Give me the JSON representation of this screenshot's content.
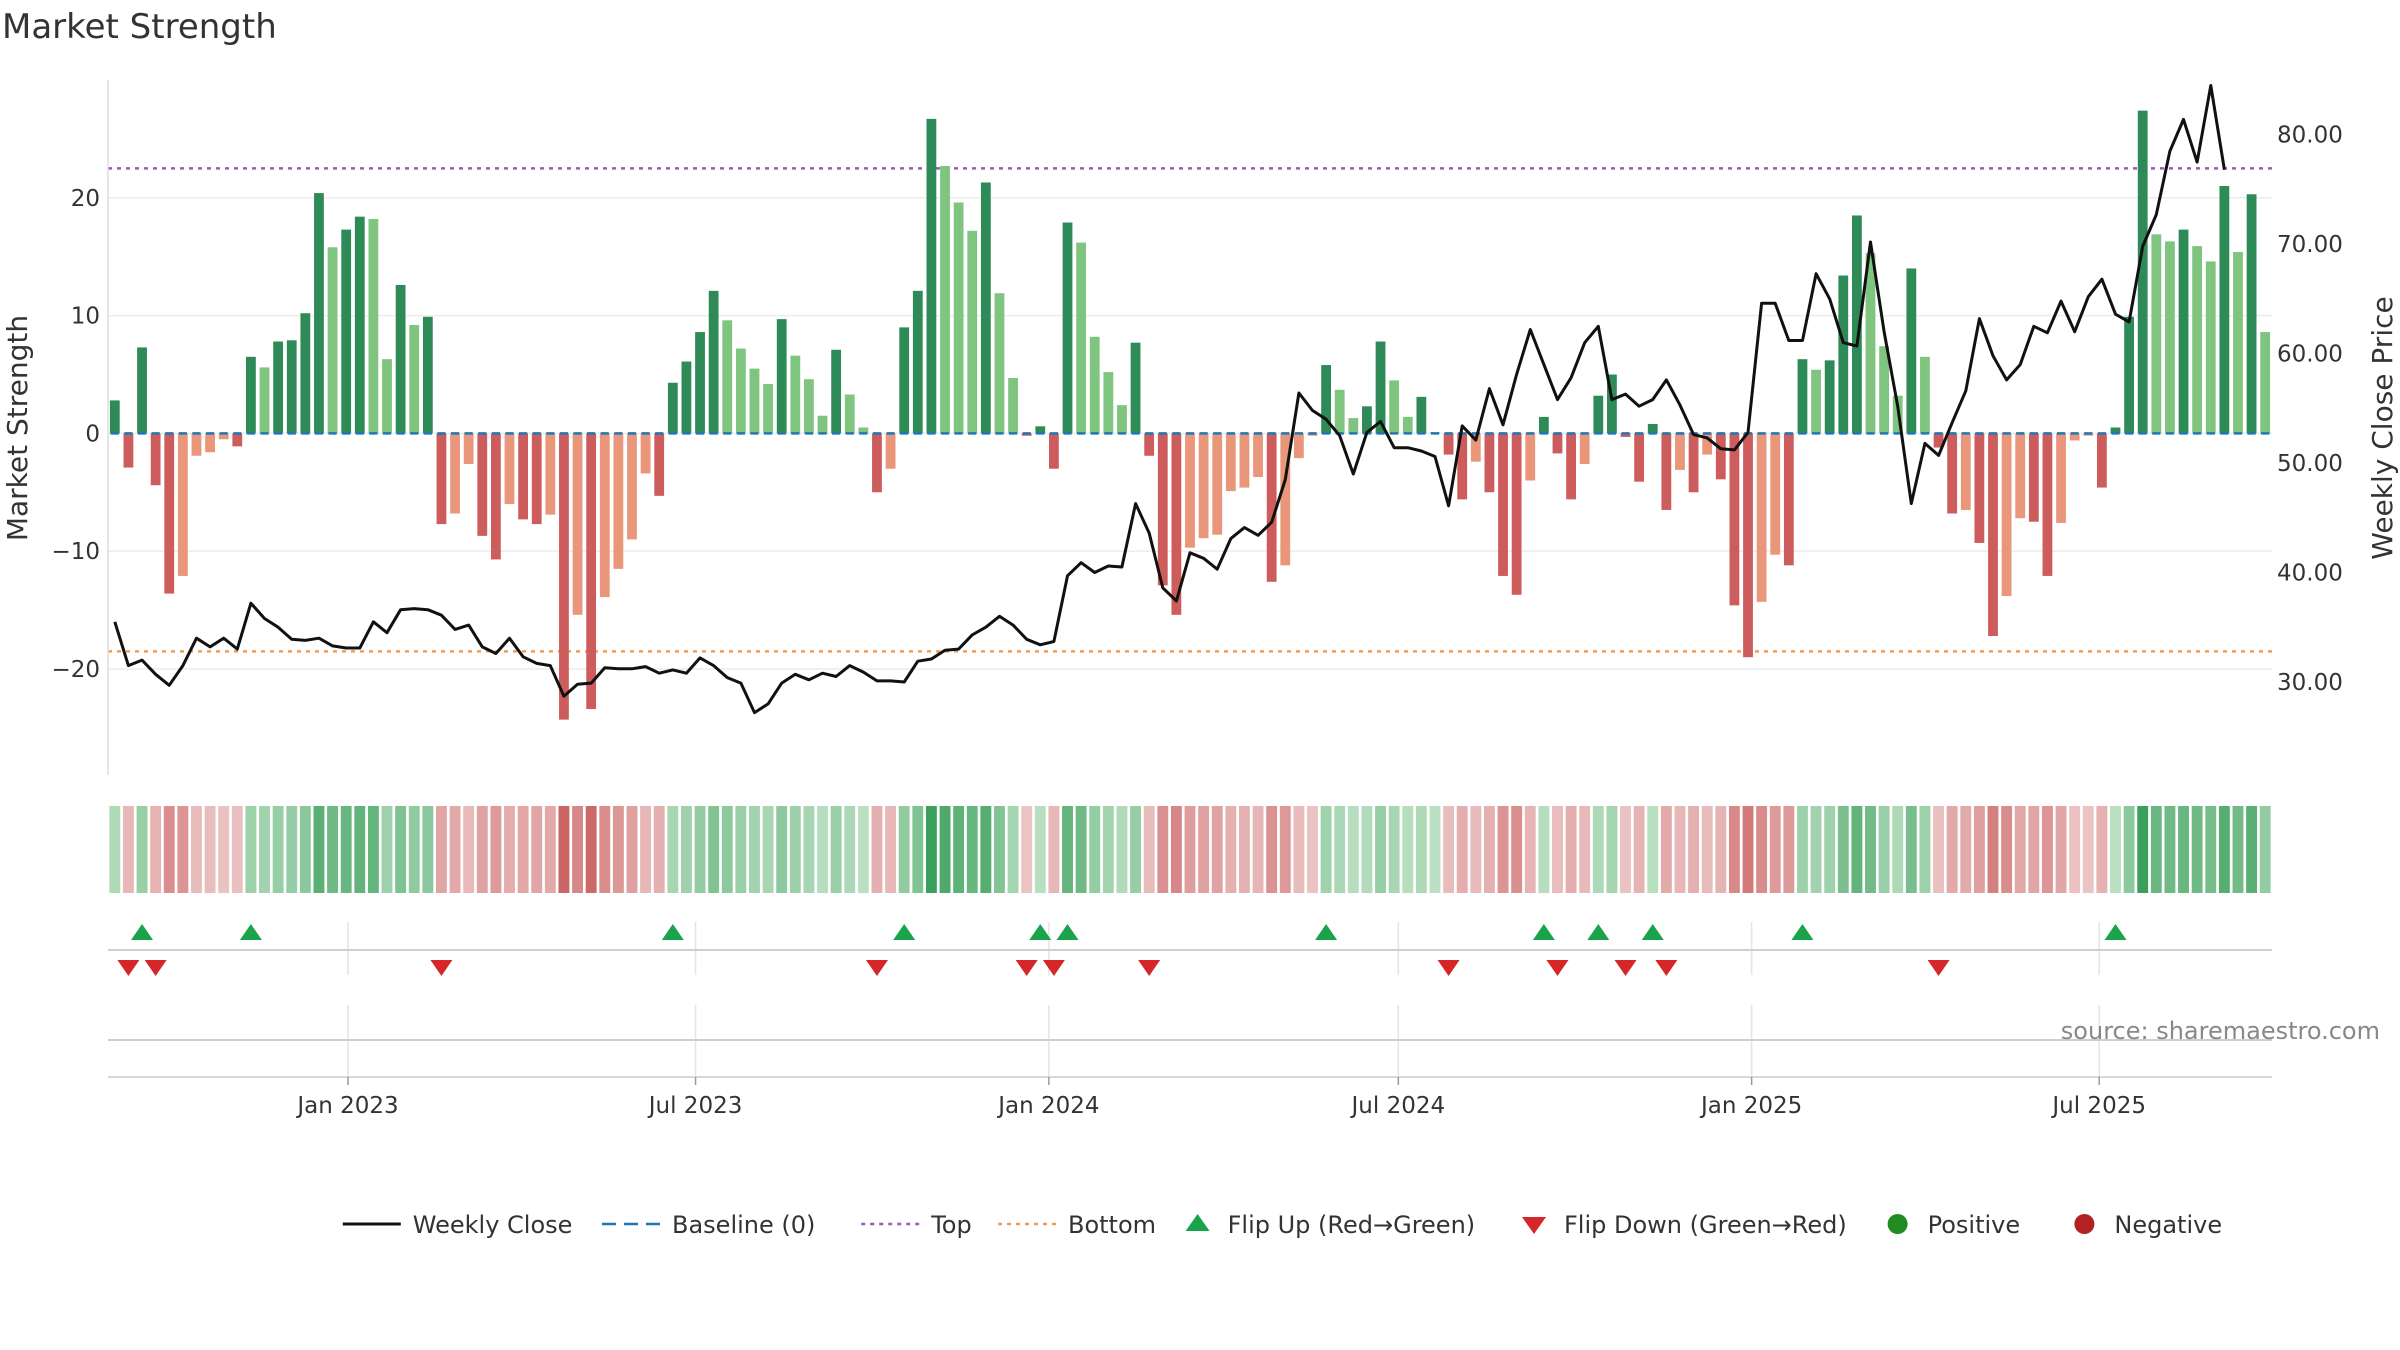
{
  "chart_data": {
    "type": "bar",
    "title": "Market Strength",
    "ylabel_left": "Market Strength",
    "ylabel_right": "Weekly Close Price",
    "source": "source: sharemaestro.com",
    "left_axis": {
      "ylim": [
        -29,
        30
      ],
      "ticks": [
        20,
        10,
        0,
        -10,
        -20
      ],
      "tick_labels": [
        "20",
        "10",
        "0",
        "−10",
        "−20"
      ]
    },
    "right_axis": {
      "ylim": [
        21.5,
        85
      ],
      "ticks": [
        80,
        70,
        60,
        50,
        40,
        30
      ],
      "tick_labels": [
        "80.00",
        "70.00",
        "60.00",
        "50.00",
        "40.00",
        "30.00"
      ]
    },
    "x_axis": {
      "start_date": "2022-08-29",
      "end_date": "2025-09-29",
      "tick_dates": [
        "2023-01-01",
        "2023-07-01",
        "2024-01-01",
        "2024-07-01",
        "2025-01-01",
        "2025-07-01"
      ],
      "tick_labels": [
        "Jan 2023",
        "Jul 2023",
        "Jan 2024",
        "Jul 2024",
        "Jan 2025",
        "Jul 2025"
      ]
    },
    "grid": true,
    "top_level": 22.5,
    "bottom_level": -18.5,
    "colors": {
      "strong_green": "#2e8b57",
      "light_green": "#7fc47f",
      "strong_red": "#cd5c5c",
      "light_red": "#e9967a",
      "price_line": "#111111",
      "baseline": "#1f77b4",
      "top": "#9b59b6",
      "bottom": "#f0a050",
      "flip_up": "#1aa34a",
      "flip_down": "#d62728",
      "positive": "#228b22",
      "negative": "#b22222"
    },
    "strength": [
      2.8,
      -2.9,
      7.3,
      -4.4,
      -13.6,
      -12.1,
      -1.9,
      -1.6,
      -0.5,
      -1.1,
      6.5,
      5.6,
      7.8,
      7.9,
      10.2,
      20.4,
      15.8,
      17.3,
      18.4,
      18.2,
      6.3,
      12.6,
      9.2,
      9.9,
      -7.7,
      -6.8,
      -2.6,
      -8.7,
      -10.7,
      -6,
      -7.3,
      -7.7,
      -6.9,
      -24.3,
      -15.4,
      -23.4,
      -13.9,
      -11.5,
      -9,
      -3.4,
      -5.3,
      4.3,
      6.1,
      8.6,
      12.1,
      9.6,
      7.2,
      5.5,
      4.2,
      9.7,
      6.6,
      4.6,
      1.5,
      7.1,
      3.3,
      0.5,
      -5,
      -3,
      9,
      12.1,
      26.7,
      22.7,
      19.6,
      17.2,
      21.3,
      11.9,
      4.7,
      -0.2,
      0.6,
      -3,
      17.9,
      16.2,
      8.2,
      5.2,
      2.4,
      7.7,
      -1.9,
      -12.9,
      -15.4,
      -9.7,
      -8.9,
      -8.6,
      -4.9,
      -4.6,
      -3.7,
      -12.6,
      -11.2,
      -2.1,
      -0.2,
      5.8,
      3.7,
      1.3,
      2.3,
      7.8,
      4.5,
      1.4,
      3.1,
      0.1,
      -1.8,
      -5.6,
      -2.4,
      -5,
      -12.1,
      -13.7,
      -4,
      1.4,
      -1.7,
      -5.6,
      -2.6,
      3.2,
      5,
      -0.3,
      -4.1,
      0.8,
      -6.5,
      -3.1,
      -5,
      -1.8,
      -3.9,
      -14.6,
      -19,
      -14.3,
      -10.3,
      -11.2,
      6.3,
      5.4,
      6.2,
      13.4,
      18.5,
      15.3,
      7.4,
      3.2,
      14,
      6.5,
      -1.2,
      -6.8,
      -6.5,
      -9.3,
      -17.2,
      -13.8,
      -7.2,
      -7.5,
      -12.1,
      -7.6,
      -0.6,
      -0.2,
      -4.6,
      0.5,
      9.9,
      27.4,
      16.9,
      16.3,
      17.3,
      15.9,
      14.6,
      21,
      15.4,
      20.3,
      8.6
    ],
    "close": [
      35.5,
      31.5,
      32,
      30.7,
      29.7,
      31.5,
      34,
      33.2,
      34,
      33,
      37.2,
      35.8,
      35,
      33.9,
      33.8,
      34,
      33.3,
      33.1,
      33.1,
      35.5,
      34.5,
      36.6,
      36.7,
      36.6,
      36.1,
      34.8,
      35.2,
      33.2,
      32.6,
      34,
      32.3,
      31.7,
      31.5,
      28.7,
      29.8,
      29.9,
      31.3,
      31.2,
      31.2,
      31.4,
      30.8,
      31.1,
      30.8,
      32.2,
      31.5,
      30.4,
      29.9,
      27.2,
      28,
      29.9,
      30.7,
      30.2,
      30.8,
      30.5,
      31.5,
      30.9,
      30.1,
      30.1,
      30,
      31.9,
      32.1,
      32.9,
      33,
      34.3,
      35,
      36,
      35.2,
      33.9,
      33.4,
      33.7,
      39.7,
      40.9,
      40,
      40.6,
      40.5,
      46.3,
      43.6,
      38.6,
      37.4,
      41.8,
      41.3,
      40.3,
      43.1,
      44.1,
      43.4,
      44.6,
      48.5,
      56.4,
      54.8,
      54,
      52.5,
      49,
      52.8,
      53.8,
      51.4,
      51.4,
      51.1,
      50.6,
      46.1,
      53.4,
      52.1,
      56.8,
      53.5,
      58.1,
      62.2,
      59,
      55.8,
      57.8,
      61,
      62.5,
      55.8,
      56.3,
      55.2,
      55.8,
      57.6,
      55.3,
      52.6,
      52.3,
      51.3,
      51.2,
      52.8,
      64.6,
      64.6,
      61.2,
      61.2,
      67.3,
      65,
      61,
      60.7,
      70.2,
      62,
      55.2,
      46.3,
      51.8,
      50.7,
      53.7,
      56.6,
      63.2,
      59.8,
      57.6,
      59,
      62.5,
      61.9,
      64.8,
      62,
      65.2,
      66.8,
      63.6,
      62.9,
      69.8,
      72.7,
      78.5,
      81.4,
      77.5,
      84.5,
      76.8
    ]
  },
  "legend": [
    {
      "kind": "line",
      "label": "Weekly Close"
    },
    {
      "kind": "dash",
      "label": "Baseline (0)"
    },
    {
      "kind": "dot-top",
      "label": "Top"
    },
    {
      "kind": "dot-bottom",
      "label": "Bottom"
    },
    {
      "kind": "tri-up",
      "label": "Flip Up (Red→Green)"
    },
    {
      "kind": "tri-down",
      "label": "Flip Down (Green→Red)"
    },
    {
      "kind": "circle-pos",
      "label": "Positive"
    },
    {
      "kind": "circle-neg",
      "label": "Negative"
    }
  ]
}
